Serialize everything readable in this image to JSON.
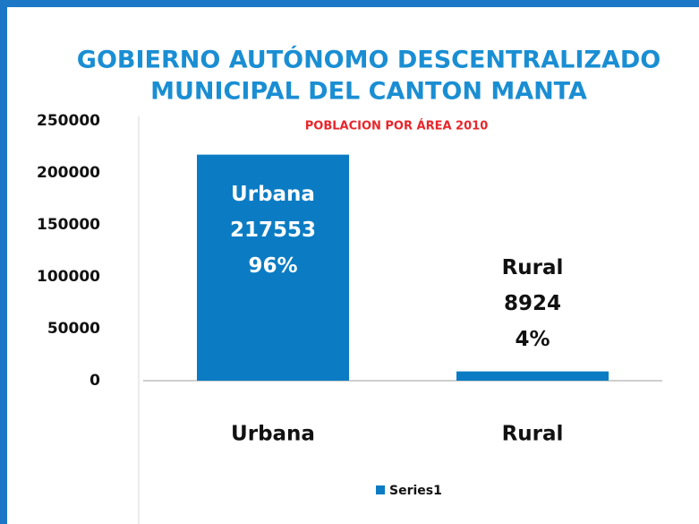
{
  "chart_data": {
    "type": "bar",
    "title": [
      "GOBIERNO AUTÓNOMO DESCENTRALIZADO",
      "MUNICIPAL DEL CANTON MANTA"
    ],
    "subtitle": "POBLACION POR  ÁREA  2010",
    "categories": [
      "Urbana",
      "Rural"
    ],
    "values": [
      217553,
      8924
    ],
    "percent_labels": [
      "96%",
      "4%"
    ],
    "color": "#0b7cc3",
    "ylim": [
      0,
      250000
    ],
    "yticks": [
      0,
      50000,
      100000,
      150000,
      200000,
      250000
    ],
    "grid": false,
    "legend": {
      "position": "bottom",
      "name": "Series1"
    }
  }
}
